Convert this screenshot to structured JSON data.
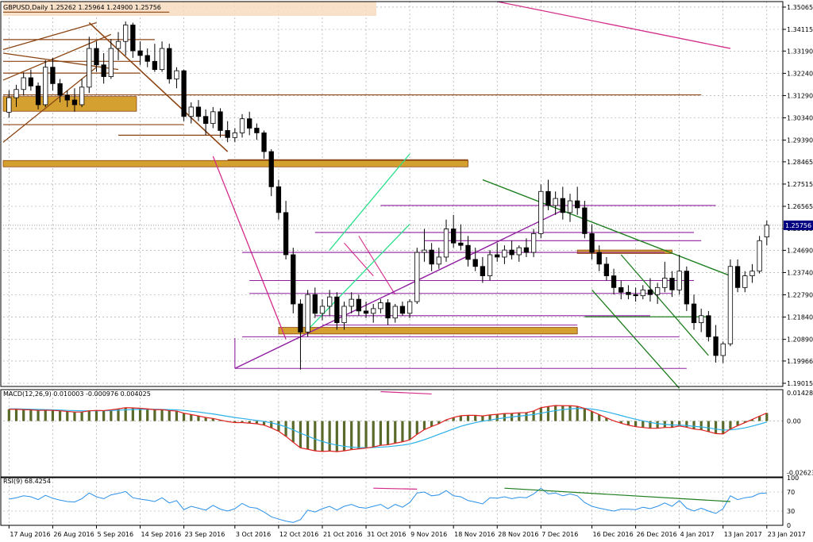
{
  "header": {
    "main_title": "GBPUSD,Daily  1.25262 1.25964 1.24900 1.25756",
    "macd_title": "MACD(12,26,9) 0.010003 -0.000976 0.004025",
    "rsi_title": "RSI(9) 68.4254"
  },
  "colors": {
    "bull": "#ffffff",
    "bear": "#000000",
    "grid": "#9c9c9c",
    "brown": "#8b4513",
    "orange_zone": "#d4a030",
    "purple": "#9020a0",
    "magenta": "#d42a8a",
    "green": "#1e7d1e",
    "lime": "#29e08a",
    "macd_red": "#e02020",
    "macd_signal": "#2ab0e8",
    "macd_hist": "#5a6a2a",
    "rsi_line": "#2a90e8",
    "price_marker": "#000080"
  },
  "chart_data": [
    {
      "type": "candlestick",
      "name": "GBPUSD,Daily",
      "ylim": [
        1.1888,
        1.353
      ],
      "last_price": "1.25756",
      "price_ticks": [
        "1.35065",
        "1.34115",
        "1.33190",
        "1.32240",
        "1.31290",
        "1.30340",
        "1.29390",
        "1.28465",
        "1.27515",
        "1.26565",
        "1.25615",
        "1.24690",
        "1.23740",
        "1.22790",
        "1.21840",
        "1.20890",
        "1.19966",
        "1.19015"
      ],
      "x_labels": [
        "17 Aug 2016",
        "26 Aug 2016",
        "5 Sep 2016",
        "14 Sep 2016",
        "23 Sep 2016",
        "3 Oct 2016",
        "12 Oct 2016",
        "21 Oct 2016",
        "31 Oct 2016",
        "9 Nov 2016",
        "18 Nov 2016",
        "28 Nov 2016",
        "7 Dec 2016",
        "16 Dec 2016",
        "26 Dec 2016",
        "4 Jan 2017",
        "13 Jan 2017",
        "23 Jan 2017"
      ],
      "ohlc": [
        [
          1.3058,
          1.3152,
          1.3035,
          1.312
        ],
        [
          1.312,
          1.3175,
          1.308,
          1.3155
        ],
        [
          1.3155,
          1.3228,
          1.313,
          1.3205
        ],
        [
          1.3205,
          1.324,
          1.315,
          1.317
        ],
        [
          1.317,
          1.3185,
          1.307,
          1.309
        ],
        [
          1.309,
          1.328,
          1.308,
          1.325
        ],
        [
          1.325,
          1.329,
          1.315,
          1.318
        ],
        [
          1.318,
          1.32,
          1.31,
          1.313
        ],
        [
          1.313,
          1.315,
          1.308,
          1.311
        ],
        [
          1.311,
          1.316,
          1.306,
          1.309
        ],
        [
          1.309,
          1.32,
          1.308,
          1.3165
        ],
        [
          1.3165,
          1.338,
          1.314,
          1.333
        ],
        [
          1.333,
          1.336,
          1.323,
          1.326
        ],
        [
          1.326,
          1.331,
          1.318,
          1.321
        ],
        [
          1.321,
          1.337,
          1.32,
          1.333
        ],
        [
          1.333,
          1.34,
          1.328,
          1.336
        ],
        [
          1.336,
          1.3445,
          1.33,
          1.343
        ],
        [
          1.343,
          1.344,
          1.329,
          1.332
        ],
        [
          1.332,
          1.336,
          1.326,
          1.33
        ],
        [
          1.33,
          1.333,
          1.325,
          1.3275
        ],
        [
          1.3275,
          1.335,
          1.323,
          1.324
        ],
        [
          1.324,
          1.336,
          1.323,
          1.333
        ],
        [
          1.333,
          1.335,
          1.318,
          1.32
        ],
        [
          1.32,
          1.325,
          1.316,
          1.3235
        ],
        [
          1.3235,
          1.324,
          1.302,
          1.304
        ],
        [
          1.304,
          1.31,
          1.301,
          1.308
        ],
        [
          1.308,
          1.311,
          1.302,
          1.304
        ],
        [
          1.304,
          1.307,
          1.296,
          1.301
        ],
        [
          1.301,
          1.308,
          1.299,
          1.306
        ],
        [
          1.306,
          1.3075,
          1.295,
          1.298
        ],
        [
          1.298,
          1.302,
          1.293,
          1.295
        ],
        [
          1.295,
          1.299,
          1.293,
          1.297
        ],
        [
          1.297,
          1.305,
          1.295,
          1.303
        ],
        [
          1.303,
          1.306,
          1.296,
          1.299
        ],
        [
          1.299,
          1.301,
          1.294,
          1.297
        ],
        [
          1.297,
          1.298,
          1.286,
          1.289
        ],
        [
          1.289,
          1.29,
          1.27,
          1.274
        ],
        [
          1.274,
          1.277,
          1.26,
          1.263
        ],
        [
          1.263,
          1.268,
          1.243,
          1.245
        ],
        [
          1.245,
          1.248,
          1.22,
          1.224
        ],
        [
          1.224,
          1.226,
          1.196,
          1.212
        ],
        [
          1.212,
          1.23,
          1.21,
          1.228
        ],
        [
          1.228,
          1.231,
          1.218,
          1.22
        ],
        [
          1.22,
          1.226,
          1.217,
          1.223
        ],
        [
          1.223,
          1.23,
          1.219,
          1.227
        ],
        [
          1.227,
          1.229,
          1.213,
          1.216
        ],
        [
          1.216,
          1.225,
          1.213,
          1.223
        ],
        [
          1.223,
          1.229,
          1.22,
          1.226
        ],
        [
          1.226,
          1.228,
          1.219,
          1.221
        ],
        [
          1.221,
          1.225,
          1.218,
          1.22
        ],
        [
          1.22,
          1.224,
          1.216,
          1.222
        ],
        [
          1.222,
          1.226,
          1.22,
          1.2245
        ],
        [
          1.2245,
          1.226,
          1.215,
          1.218
        ],
        [
          1.218,
          1.224,
          1.216,
          1.223
        ],
        [
          1.223,
          1.225,
          1.219,
          1.22
        ],
        [
          1.22,
          1.226,
          1.218,
          1.225
        ],
        [
          1.225,
          1.248,
          1.224,
          1.246
        ],
        [
          1.246,
          1.256,
          1.242,
          1.247
        ],
        [
          1.247,
          1.25,
          1.238,
          1.241
        ],
        [
          1.241,
          1.248,
          1.239,
          1.244
        ],
        [
          1.244,
          1.26,
          1.242,
          1.256
        ],
        [
          1.256,
          1.262,
          1.248,
          1.25
        ],
        [
          1.25,
          1.258,
          1.247,
          1.249
        ],
        [
          1.249,
          1.253,
          1.24,
          1.243
        ],
        [
          1.243,
          1.248,
          1.238,
          1.24
        ],
        [
          1.24,
          1.244,
          1.233,
          1.236
        ],
        [
          1.236,
          1.247,
          1.234,
          1.245
        ],
        [
          1.245,
          1.25,
          1.242,
          1.244
        ],
        [
          1.244,
          1.249,
          1.241,
          1.247
        ],
        [
          1.247,
          1.251,
          1.243,
          1.245
        ],
        [
          1.245,
          1.249,
          1.242,
          1.248
        ],
        [
          1.248,
          1.252,
          1.244,
          1.246
        ],
        [
          1.246,
          1.256,
          1.244,
          1.254
        ],
        [
          1.254,
          1.275,
          1.252,
          1.272
        ],
        [
          1.272,
          1.277,
          1.264,
          1.266
        ],
        [
          1.266,
          1.272,
          1.262,
          1.269
        ],
        [
          1.269,
          1.274,
          1.26,
          1.263
        ],
        [
          1.263,
          1.271,
          1.259,
          1.268
        ],
        [
          1.268,
          1.274,
          1.262,
          1.265
        ],
        [
          1.265,
          1.268,
          1.252,
          1.254
        ],
        [
          1.254,
          1.258,
          1.243,
          1.246
        ],
        [
          1.246,
          1.249,
          1.238,
          1.241
        ],
        [
          1.241,
          1.244,
          1.234,
          1.236
        ],
        [
          1.236,
          1.239,
          1.228,
          1.231
        ],
        [
          1.231,
          1.234,
          1.226,
          1.229
        ],
        [
          1.229,
          1.232,
          1.226,
          1.228
        ],
        [
          1.228,
          1.231,
          1.225,
          1.2275
        ],
        [
          1.2275,
          1.232,
          1.226,
          1.23
        ],
        [
          1.23,
          1.235,
          1.225,
          1.228
        ],
        [
          1.228,
          1.233,
          1.224,
          1.231
        ],
        [
          1.231,
          1.242,
          1.229,
          1.235
        ],
        [
          1.235,
          1.238,
          1.227,
          1.23
        ],
        [
          1.23,
          1.245,
          1.228,
          1.238
        ],
        [
          1.238,
          1.24,
          1.221,
          1.224
        ],
        [
          1.224,
          1.228,
          1.213,
          1.216
        ],
        [
          1.216,
          1.222,
          1.212,
          1.219
        ],
        [
          1.219,
          1.221,
          1.208,
          1.21
        ],
        [
          1.21,
          1.215,
          1.199,
          1.202
        ],
        [
          1.202,
          1.208,
          1.1988,
          1.207
        ],
        [
          1.207,
          1.243,
          1.206,
          1.24
        ],
        [
          1.24,
          1.243,
          1.229,
          1.231
        ],
        [
          1.231,
          1.238,
          1.229,
          1.236
        ],
        [
          1.236,
          1.241,
          1.233,
          1.238
        ],
        [
          1.238,
          1.253,
          1.237,
          1.251
        ],
        [
          1.2526,
          1.2596,
          1.249,
          1.2576
        ]
      ]
    },
    {
      "type": "bar+line",
      "name": "MACD(12,26,9)",
      "ticks": [
        "0.014288",
        "0.00",
        "-0.026237"
      ],
      "ylim": [
        -0.0285,
        0.016
      ],
      "macd": [
        0.006,
        0.006,
        0.0058,
        0.0057,
        0.0054,
        0.0055,
        0.0054,
        0.0052,
        0.0049,
        0.0046,
        0.0046,
        0.0052,
        0.0054,
        0.0053,
        0.0057,
        0.0062,
        0.0068,
        0.0067,
        0.0065,
        0.0062,
        0.0058,
        0.0058,
        0.0053,
        0.0051,
        0.004,
        0.0033,
        0.0026,
        0.0018,
        0.0013,
        0.0005,
        -0.0003,
        -0.0008,
        -0.0008,
        -0.0011,
        -0.0014,
        -0.0021,
        -0.0035,
        -0.0052,
        -0.0078,
        -0.0108,
        -0.0137,
        -0.0144,
        -0.0152,
        -0.0155,
        -0.0153,
        -0.0156,
        -0.0152,
        -0.0146,
        -0.0142,
        -0.0138,
        -0.0132,
        -0.0124,
        -0.0121,
        -0.0113,
        -0.0106,
        -0.0096,
        -0.0068,
        -0.0044,
        -0.0028,
        -0.0014,
        0.0006,
        0.0018,
        0.0027,
        0.0029,
        0.0029,
        0.0026,
        0.0031,
        0.0034,
        0.0038,
        0.0039,
        0.0042,
        0.0043,
        0.0051,
        0.0068,
        0.0074,
        0.0079,
        0.0078,
        0.0078,
        0.0075,
        0.0064,
        0.0049,
        0.0033,
        0.0016,
        0.0001,
        -0.0011,
        -0.0021,
        -0.0029,
        -0.0033,
        -0.0037,
        -0.0037,
        -0.0033,
        -0.0033,
        -0.0025,
        -0.0032,
        -0.0041,
        -0.0045,
        -0.0054,
        -0.0064,
        -0.0066,
        -0.0041,
        -0.0024,
        -0.0008,
        0.0008,
        0.0025,
        0.0041
      ],
      "signal": [
        0.0062,
        0.0062,
        0.0061,
        0.006,
        0.0059,
        0.0058,
        0.0057,
        0.0056,
        0.0054,
        0.0053,
        0.0052,
        0.0052,
        0.0052,
        0.0052,
        0.0053,
        0.0055,
        0.0057,
        0.0059,
        0.006,
        0.006,
        0.006,
        0.0059,
        0.0058,
        0.0057,
        0.0054,
        0.005,
        0.0046,
        0.0041,
        0.0036,
        0.003,
        0.0024,
        0.0018,
        0.0013,
        0.0008,
        0.0003,
        -0.0002,
        -0.0009,
        -0.0018,
        -0.003,
        -0.0045,
        -0.0062,
        -0.0077,
        -0.0092,
        -0.0104,
        -0.0115,
        -0.0123,
        -0.0129,
        -0.0133,
        -0.0135,
        -0.0136,
        -0.0135,
        -0.0133,
        -0.0131,
        -0.0127,
        -0.0123,
        -0.0117,
        -0.0107,
        -0.0095,
        -0.0082,
        -0.0068,
        -0.0054,
        -0.004,
        -0.0027,
        -0.0017,
        -0.0008,
        -0.0001,
        0.0005,
        0.0011,
        0.0016,
        0.0021,
        0.0025,
        0.0029,
        0.0033,
        0.004,
        0.0047,
        0.0053,
        0.0058,
        0.0062,
        0.0064,
        0.0064,
        0.0061,
        0.0055,
        0.0047,
        0.0038,
        0.0028,
        0.0018,
        0.0009,
        0.0001,
        -0.0007,
        -0.0013,
        -0.0017,
        -0.002,
        -0.0021,
        -0.0023,
        -0.0027,
        -0.003,
        -0.0035,
        -0.0041,
        -0.0046,
        -0.0045,
        -0.0041,
        -0.0035,
        -0.0026,
        -0.0016,
        -0.0005
      ]
    },
    {
      "type": "line",
      "name": "RSI(9)",
      "ticks": [
        "100",
        "70",
        "30",
        "0"
      ],
      "ylim": [
        0,
        100
      ],
      "levels": [
        70,
        30
      ],
      "values": [
        55,
        58,
        62,
        60,
        54,
        63,
        57,
        53,
        50,
        49,
        56,
        68,
        60,
        56,
        64,
        67,
        71,
        58,
        55,
        53,
        50,
        58,
        47,
        52,
        33,
        40,
        36,
        32,
        42,
        34,
        30,
        35,
        46,
        38,
        36,
        28,
        18,
        13,
        9,
        6,
        12,
        32,
        28,
        35,
        40,
        32,
        40,
        44,
        38,
        36,
        40,
        44,
        35,
        44,
        38,
        48,
        68,
        70,
        62,
        64,
        73,
        62,
        60,
        52,
        49,
        45,
        58,
        57,
        60,
        56,
        59,
        58,
        66,
        78,
        66,
        68,
        62,
        66,
        62,
        48,
        40,
        36,
        33,
        30,
        34,
        34,
        33,
        38,
        35,
        40,
        47,
        40,
        52,
        36,
        30,
        36,
        30,
        25,
        35,
        62,
        54,
        58,
        60,
        67,
        68
      ]
    }
  ]
}
